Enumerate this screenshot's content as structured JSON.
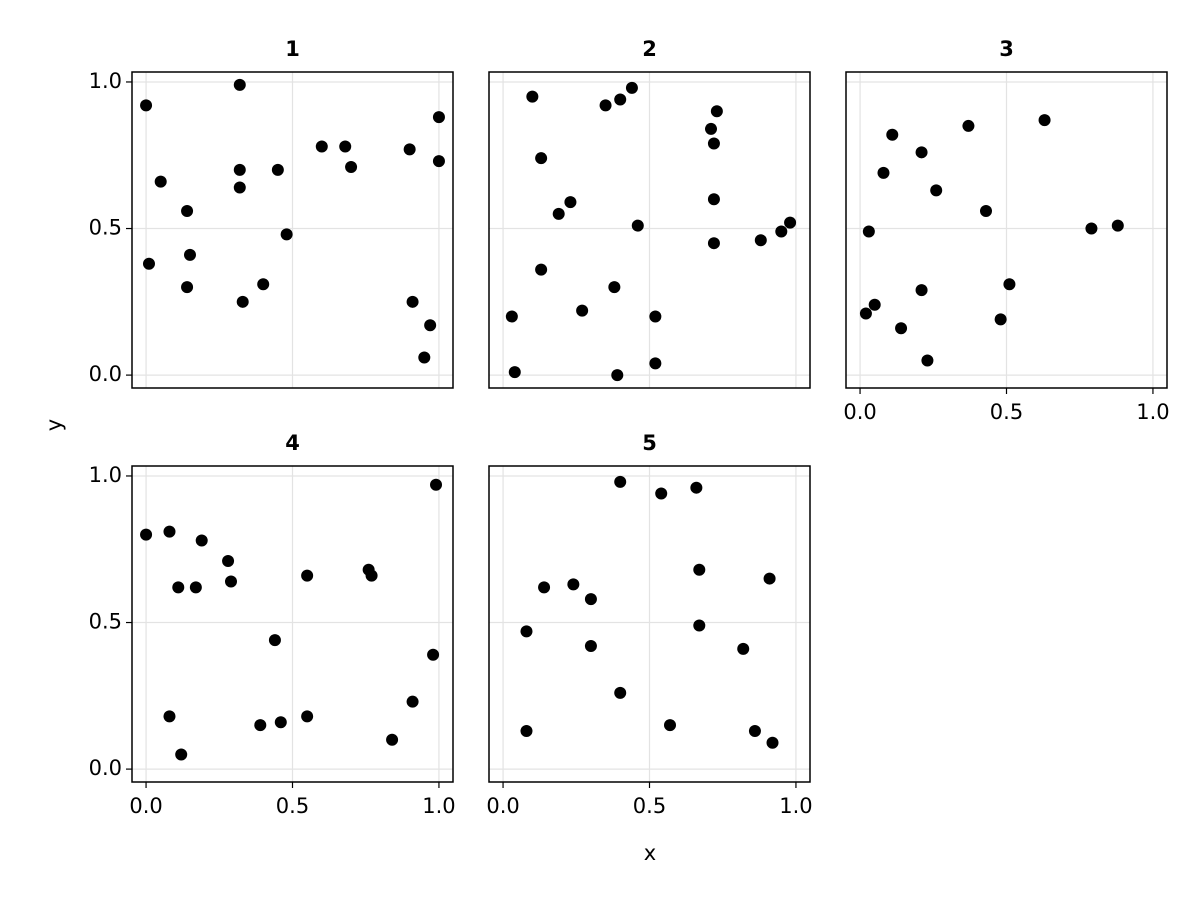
{
  "xlabel": "x",
  "ylabel": "y",
  "chart_data": [
    {
      "type": "scatter",
      "title": "1",
      "color": "#000000",
      "grid": true,
      "xtick_labels": false,
      "ytick_labels": true,
      "xlim": [
        -0.048,
        1.048
      ],
      "ylim": [
        -0.044,
        1.034
      ],
      "xticks": [
        {
          "value": 0,
          "label": "0.0"
        },
        {
          "value": 0.5,
          "label": "0.5"
        },
        {
          "value": 1,
          "label": "1.0"
        }
      ],
      "yticks": [
        {
          "value": 0,
          "label": "0.0"
        },
        {
          "value": 0.5,
          "label": "0.5"
        },
        {
          "value": 1,
          "label": "1.0"
        }
      ],
      "x": [
        0.0,
        0.01,
        0.05,
        0.14,
        0.15,
        0.14,
        0.32,
        0.32,
        0.32,
        0.33,
        0.45,
        0.48,
        0.4,
        0.6,
        0.68,
        0.7,
        0.9,
        1.0,
        1.0,
        0.91,
        0.97,
        0.95
      ],
      "y": [
        0.92,
        0.38,
        0.66,
        0.56,
        0.41,
        0.3,
        0.99,
        0.7,
        0.64,
        0.25,
        0.7,
        0.48,
        0.31,
        0.78,
        0.78,
        0.71,
        0.77,
        0.88,
        0.73,
        0.25,
        0.17,
        0.06
      ]
    },
    {
      "type": "scatter",
      "title": "2",
      "color": "#000000",
      "grid": true,
      "xtick_labels": false,
      "ytick_labels": false,
      "xlim": [
        -0.048,
        1.048
      ],
      "ylim": [
        -0.044,
        1.034
      ],
      "xticks": [
        {
          "value": 0,
          "label": "0.0"
        },
        {
          "value": 0.5,
          "label": "0.5"
        },
        {
          "value": 1,
          "label": "1.0"
        }
      ],
      "yticks": [
        {
          "value": 0,
          "label": "0.0"
        },
        {
          "value": 0.5,
          "label": "0.5"
        },
        {
          "value": 1,
          "label": "1.0"
        }
      ],
      "x": [
        0.1,
        0.13,
        0.19,
        0.23,
        0.13,
        0.03,
        0.04,
        0.27,
        0.35,
        0.4,
        0.44,
        0.38,
        0.39,
        0.46,
        0.52,
        0.52,
        0.71,
        0.73,
        0.72,
        0.72,
        0.72,
        0.88,
        0.95,
        0.98
      ],
      "y": [
        0.95,
        0.74,
        0.55,
        0.59,
        0.36,
        0.2,
        0.01,
        0.22,
        0.92,
        0.94,
        0.98,
        0.3,
        0.0,
        0.51,
        0.2,
        0.04,
        0.84,
        0.9,
        0.79,
        0.6,
        0.45,
        0.46,
        0.49,
        0.52
      ]
    },
    {
      "type": "scatter",
      "title": "3",
      "color": "#000000",
      "grid": true,
      "xtick_labels": true,
      "ytick_labels": false,
      "xlim": [
        -0.048,
        1.048
      ],
      "ylim": [
        -0.044,
        1.034
      ],
      "xticks": [
        {
          "value": 0,
          "label": "0.0"
        },
        {
          "value": 0.5,
          "label": "0.5"
        },
        {
          "value": 1,
          "label": "1.0"
        }
      ],
      "yticks": [
        {
          "value": 0,
          "label": "0.0"
        },
        {
          "value": 0.5,
          "label": "0.5"
        },
        {
          "value": 1,
          "label": "1.0"
        }
      ],
      "x": [
        0.02,
        0.03,
        0.05,
        0.08,
        0.11,
        0.14,
        0.21,
        0.21,
        0.23,
        0.26,
        0.37,
        0.43,
        0.48,
        0.51,
        0.63,
        0.79,
        0.88
      ],
      "y": [
        0.21,
        0.49,
        0.24,
        0.69,
        0.82,
        0.16,
        0.76,
        0.29,
        0.05,
        0.63,
        0.85,
        0.56,
        0.19,
        0.31,
        0.87,
        0.5,
        0.51
      ]
    },
    {
      "type": "scatter",
      "title": "4",
      "color": "#000000",
      "grid": true,
      "xtick_labels": true,
      "ytick_labels": true,
      "xlim": [
        -0.048,
        1.048
      ],
      "ylim": [
        -0.044,
        1.034
      ],
      "xticks": [
        {
          "value": 0,
          "label": "0.0"
        },
        {
          "value": 0.5,
          "label": "0.5"
        },
        {
          "value": 1,
          "label": "1.0"
        }
      ],
      "yticks": [
        {
          "value": 0,
          "label": "0.0"
        },
        {
          "value": 0.5,
          "label": "0.5"
        },
        {
          "value": 1,
          "label": "1.0"
        }
      ],
      "x": [
        0.0,
        0.08,
        0.19,
        0.28,
        0.29,
        0.11,
        0.17,
        0.08,
        0.12,
        0.39,
        0.46,
        0.44,
        0.55,
        0.55,
        0.76,
        0.77,
        0.84,
        0.91,
        0.98,
        0.99
      ],
      "y": [
        0.8,
        0.81,
        0.78,
        0.71,
        0.64,
        0.62,
        0.62,
        0.18,
        0.05,
        0.15,
        0.16,
        0.44,
        0.66,
        0.18,
        0.68,
        0.66,
        0.1,
        0.23,
        0.39,
        0.97
      ]
    },
    {
      "type": "scatter",
      "title": "5",
      "color": "#000000",
      "grid": true,
      "xtick_labels": true,
      "ytick_labels": false,
      "xlim": [
        -0.048,
        1.048
      ],
      "ylim": [
        -0.044,
        1.034
      ],
      "xticks": [
        {
          "value": 0,
          "label": "0.0"
        },
        {
          "value": 0.5,
          "label": "0.5"
        },
        {
          "value": 1,
          "label": "1.0"
        }
      ],
      "yticks": [
        {
          "value": 0,
          "label": "0.0"
        },
        {
          "value": 0.5,
          "label": "0.5"
        },
        {
          "value": 1,
          "label": "1.0"
        }
      ],
      "x": [
        0.08,
        0.08,
        0.14,
        0.24,
        0.3,
        0.3,
        0.4,
        0.4,
        0.54,
        0.66,
        0.57,
        0.67,
        0.67,
        0.82,
        0.91,
        0.86,
        0.92
      ],
      "y": [
        0.47,
        0.13,
        0.62,
        0.63,
        0.58,
        0.42,
        0.98,
        0.26,
        0.94,
        0.96,
        0.15,
        0.68,
        0.49,
        0.41,
        0.65,
        0.13,
        0.09
      ]
    }
  ]
}
